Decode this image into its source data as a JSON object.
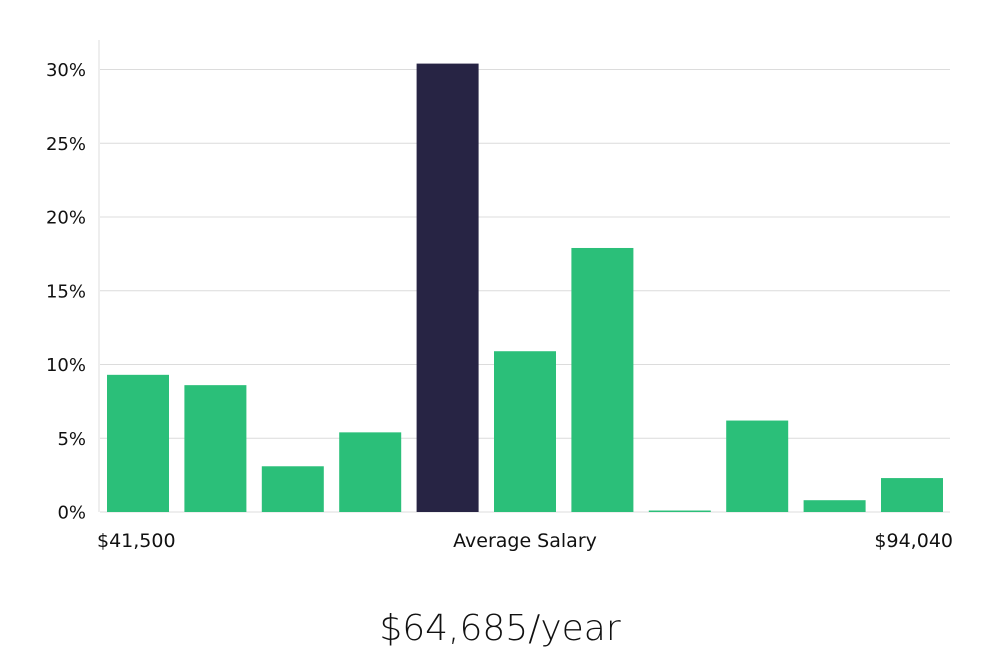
{
  "chart_data": {
    "type": "bar",
    "title": "",
    "ylabel": "",
    "xlabel": "Average Salary",
    "x_start_label": "$41,500",
    "x_end_label": "$94,040",
    "ylim": [
      0,
      32
    ],
    "yticks": [
      0,
      5,
      10,
      15,
      20,
      25,
      30
    ],
    "ytick_labels": [
      "0%",
      "5%",
      "10%",
      "15%",
      "20%",
      "25%",
      "30%"
    ],
    "values": [
      9.3,
      8.6,
      3.1,
      5.4,
      30.4,
      10.9,
      17.9,
      0.1,
      6.2,
      0.8,
      2.3
    ],
    "highlight_index": 4,
    "bar_color": "#2bbf79",
    "highlight_color": "#272444",
    "grid": true
  },
  "salary_text": "$64,685/year"
}
